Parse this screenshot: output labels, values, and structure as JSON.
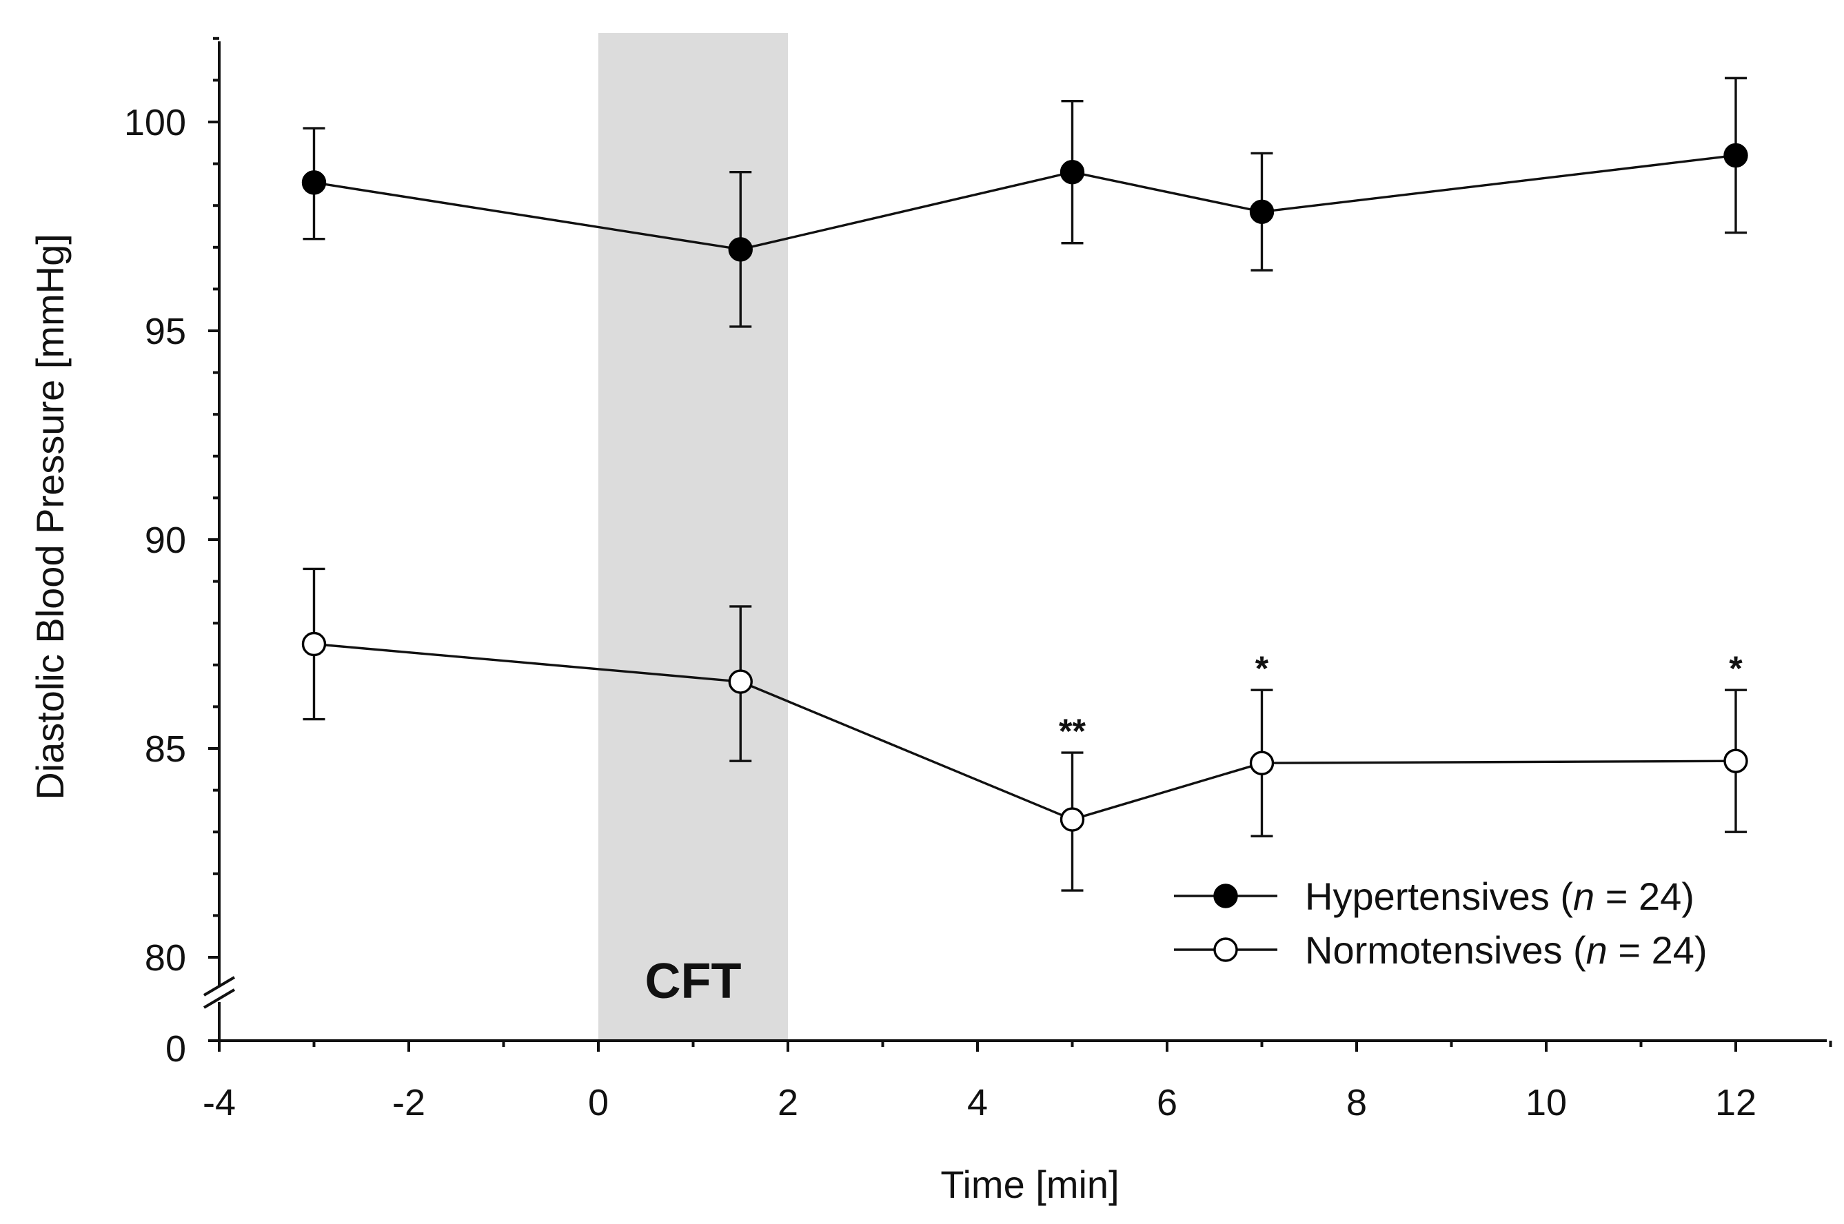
{
  "chart_data": {
    "type": "line",
    "xlabel": "Time [min]",
    "ylabel": "Diastolic Blood Pressure [mmHg]",
    "xlim": [
      -4,
      13
    ],
    "ylim": [
      80,
      102
    ],
    "axis_break": true,
    "y_break_label": "0",
    "x_ticks": [
      -4,
      -2,
      0,
      2,
      4,
      6,
      8,
      10,
      12
    ],
    "x_tick_labels": [
      "-4",
      "-2",
      "0",
      "2",
      "4",
      "6",
      "8",
      "10",
      "12"
    ],
    "y_ticks": [
      80,
      85,
      90,
      95,
      100
    ],
    "y_tick_labels": [
      "80",
      "85",
      "90",
      "95",
      "100"
    ],
    "shaded_region": {
      "x_start": 0,
      "x_end": 2,
      "label": "CFT",
      "color": "#dcdcdc"
    },
    "legend_position": "bottom-right",
    "series": [
      {
        "name": "Hypertensives",
        "legend_prefix": "Hypertensives (",
        "legend_italic": "n",
        "legend_suffix": " = 24)",
        "marker": "filled",
        "x": [
          -3,
          1.5,
          5,
          7,
          12
        ],
        "values": [
          98.55,
          96.95,
          98.8,
          97.85,
          99.2
        ],
        "err_upper": [
          99.85,
          98.8,
          100.5,
          99.25,
          101.05
        ],
        "err_lower": [
          97.2,
          95.1,
          97.1,
          96.45,
          97.35
        ],
        "annotations": [
          "",
          "",
          "",
          "",
          ""
        ]
      },
      {
        "name": "Normotensives",
        "legend_prefix": "Normotensives (",
        "legend_italic": "n",
        "legend_suffix": " = 24)",
        "marker": "open",
        "x": [
          -3,
          1.5,
          5,
          7,
          12
        ],
        "values": [
          87.5,
          86.6,
          83.3,
          84.65,
          84.7
        ],
        "err_upper": [
          89.3,
          88.4,
          84.9,
          86.4,
          86.4
        ],
        "err_lower": [
          85.7,
          84.7,
          81.6,
          82.9,
          83.0
        ],
        "annotations": [
          "",
          "",
          "**",
          "*",
          "*"
        ]
      }
    ],
    "colors": {
      "line": "#111111",
      "filled_marker": "#000000",
      "open_marker": "#ffffff",
      "shade": "#dcdcdc"
    }
  }
}
